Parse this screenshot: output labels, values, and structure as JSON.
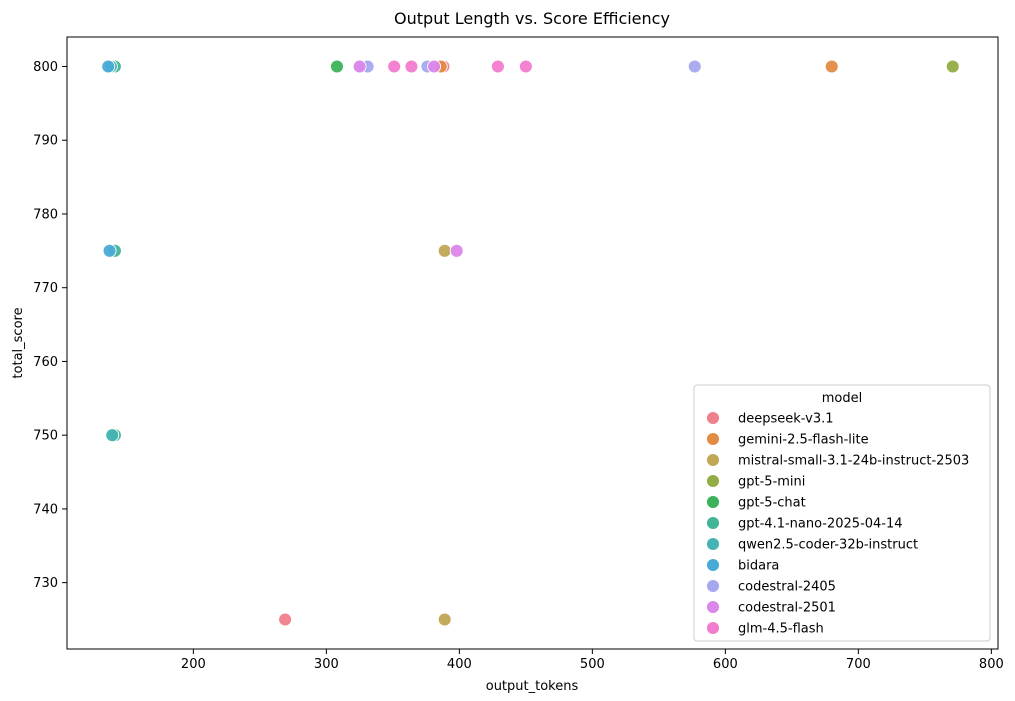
{
  "chart_data": {
    "type": "scatter",
    "title": "Output Length vs. Score Efficiency",
    "xlabel": "output_tokens",
    "ylabel": "total_score",
    "xlim": [
      105,
      805
    ],
    "ylim": [
      721,
      804
    ],
    "xticks": [
      200,
      300,
      400,
      500,
      600,
      700,
      800
    ],
    "yticks": [
      730,
      740,
      750,
      760,
      770,
      780,
      790,
      800
    ],
    "grid": false,
    "legend_title": "model",
    "legend_position": "lower-right",
    "series": [
      {
        "name": "deepseek-v3.1",
        "color": "#f07f8c",
        "points": [
          [
            269,
            725
          ],
          [
            388,
            800
          ]
        ]
      },
      {
        "name": "gemini-2.5-flash-lite",
        "color": "#e18b43",
        "points": [
          [
            680,
            800
          ],
          [
            386,
            800
          ]
        ]
      },
      {
        "name": "mistral-small-3.1-24b-instruct-2503",
        "color": "#c0a655",
        "points": [
          [
            389,
            725
          ],
          [
            389,
            775
          ]
        ]
      },
      {
        "name": "gpt-5-mini",
        "color": "#92ad43",
        "points": [
          [
            771,
            800
          ]
        ]
      },
      {
        "name": "gpt-5-chat",
        "color": "#3bb25a",
        "points": [
          [
            308,
            800
          ]
        ]
      },
      {
        "name": "gpt-4.1-nano-2025-04-14",
        "color": "#42b597",
        "points": [
          [
            141,
            800
          ],
          [
            141,
            775
          ],
          [
            141,
            750
          ]
        ]
      },
      {
        "name": "qwen2.5-coder-32b-instruct",
        "color": "#45b3b3",
        "points": [
          [
            138,
            800
          ],
          [
            139,
            750
          ]
        ]
      },
      {
        "name": "bidara",
        "color": "#4aaad7",
        "points": [
          [
            136,
            800
          ],
          [
            137,
            775
          ]
        ]
      },
      {
        "name": "codestral-2405",
        "color": "#a6a7ef",
        "points": [
          [
            577,
            800
          ],
          [
            327,
            800
          ],
          [
            331,
            800
          ],
          [
            376,
            800
          ]
        ]
      },
      {
        "name": "codestral-2501",
        "color": "#db86ea",
        "points": [
          [
            398,
            775
          ],
          [
            325,
            800
          ],
          [
            381,
            800
          ]
        ]
      },
      {
        "name": "glm-4.5-flash",
        "color": "#f27cce",
        "points": [
          [
            351,
            800
          ],
          [
            364,
            800
          ],
          [
            429,
            800
          ],
          [
            450,
            800
          ]
        ]
      }
    ]
  }
}
